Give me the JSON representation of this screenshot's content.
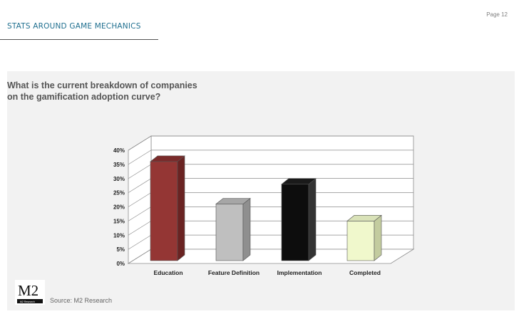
{
  "page": {
    "page_number": "Page 12",
    "section_title": "STATS AROUND GAME MECHANICS",
    "question": "What is the current breakdown of companies\n on the gamification adoption curve?",
    "source": "Source: M2 Research",
    "logo": {
      "text": "M2",
      "subtext": "M2 Research"
    }
  },
  "colors": {
    "section_title": "#1f6f8f",
    "panel_bg": "#f2f2f2",
    "education": "#943634",
    "feature_definition": "#bfbfbf",
    "implementation": "#0d0d0d",
    "completed": "#f0f8cc"
  },
  "chart_data": {
    "type": "bar",
    "title": "",
    "xlabel": "",
    "ylabel": "",
    "categories": [
      "Education",
      "Feature Definition",
      "Implementation",
      "Completed"
    ],
    "values": [
      35,
      20,
      27,
      14
    ],
    "unit": "%",
    "ylim": [
      0,
      40
    ],
    "yticks": [
      "0%",
      "5%",
      "10%",
      "15%",
      "20%",
      "25%",
      "30%",
      "35%",
      "40%"
    ],
    "grid": true,
    "style": "3d-bar",
    "legend": "none"
  }
}
